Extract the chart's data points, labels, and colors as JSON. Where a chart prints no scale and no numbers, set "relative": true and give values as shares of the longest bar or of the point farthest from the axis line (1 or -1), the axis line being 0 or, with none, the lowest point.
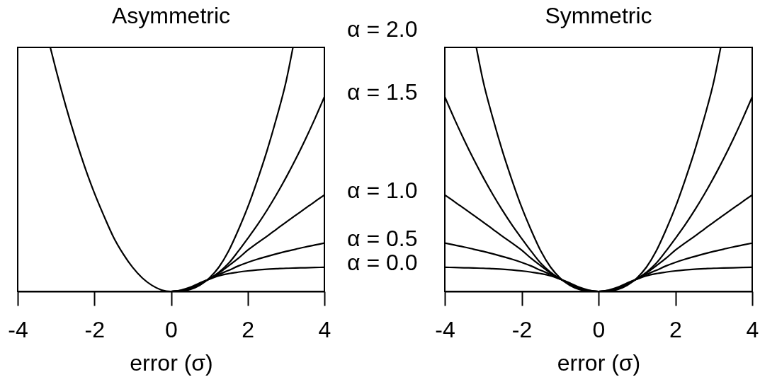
{
  "chart_data": [
    {
      "type": "line",
      "title": "Asymmetric",
      "xlabel": "error (σ)",
      "xlim": [
        -4,
        4
      ],
      "xticks": [
        -4,
        -2,
        0,
        2,
        4
      ],
      "relative": true,
      "series": [
        {
          "name": "α = 1.5",
          "color": "#000000",
          "x": [
            0,
            0.25,
            0.5,
            0.75,
            1,
            1.25,
            1.5,
            1.75,
            2,
            2.25,
            2.5,
            2.75,
            3,
            3.25,
            3.5,
            3.75,
            4
          ],
          "values": [
            0,
            0.002,
            0.01,
            0.028,
            0.052,
            0.079,
            0.115,
            0.164,
            0.217,
            0.272,
            0.332,
            0.397,
            0.467,
            0.542,
            0.622,
            0.707,
            0.797
          ]
        },
        {
          "name": "α = 1.0",
          "color": "#000000",
          "x": [
            0,
            0.25,
            0.5,
            0.75,
            1,
            1.25,
            1.5,
            1.75,
            2,
            2.25,
            2.5,
            2.75,
            3,
            3.25,
            3.5,
            3.75,
            4
          ],
          "values": [
            0,
            0.003,
            0.012,
            0.031,
            0.051,
            0.076,
            0.105,
            0.135,
            0.169,
            0.198,
            0.226,
            0.255,
            0.284,
            0.312,
            0.34,
            0.368,
            0.395
          ]
        },
        {
          "name": "α = 0.5",
          "color": "#000000",
          "x": [
            0,
            0.25,
            0.5,
            0.75,
            1,
            1.25,
            1.5,
            1.75,
            2,
            2.25,
            2.5,
            2.75,
            3,
            3.25,
            3.5,
            3.75,
            4
          ],
          "values": [
            0,
            0.004,
            0.014,
            0.033,
            0.051,
            0.07,
            0.086,
            0.104,
            0.119,
            0.132,
            0.143,
            0.154,
            0.164,
            0.173,
            0.182,
            0.19,
            0.198
          ]
        },
        {
          "name": "α = 0.0",
          "color": "#000000",
          "x": [
            0,
            0.25,
            0.5,
            0.75,
            1,
            1.25,
            1.5,
            1.75,
            2,
            2.25,
            2.5,
            2.75,
            3,
            3.25,
            3.5,
            3.75,
            4
          ],
          "values": [
            0,
            0.005,
            0.017,
            0.035,
            0.05,
            0.064,
            0.073,
            0.079,
            0.084,
            0.088,
            0.091,
            0.093,
            0.095,
            0.096,
            0.097,
            0.098,
            0.099
          ]
        },
        {
          "name": "α = 2.0",
          "color": "#000000",
          "x": [
            -3.15,
            -3,
            -2.75,
            -2.5,
            -2.25,
            -2,
            -1.75,
            -1.5,
            -1.25,
            -1,
            -0.75,
            -0.5,
            -0.25,
            0,
            0.25,
            0.5,
            0.75,
            1,
            1.25,
            1.5,
            1.75,
            2,
            2.25,
            2.5,
            2.75,
            3,
            3.18
          ],
          "values": [
            1,
            0.907,
            0.762,
            0.63,
            0.51,
            0.403,
            0.309,
            0.222,
            0.154,
            0.098,
            0.055,
            0.025,
            0.006,
            0,
            0.002,
            0.008,
            0.025,
            0.055,
            0.1,
            0.165,
            0.25,
            0.345,
            0.455,
            0.575,
            0.71,
            0.86,
            1
          ]
        }
      ]
    },
    {
      "type": "line",
      "title": "Symmetric",
      "xlabel": "error (σ)",
      "xlim": [
        -4,
        4
      ],
      "xticks": [
        -4,
        -2,
        0,
        2,
        4
      ],
      "relative": true,
      "series": [
        {
          "color": "#000000",
          "x": [
            -4,
            -3.75,
            -3.5,
            -3.25,
            -3,
            -2.75,
            -2.5,
            -2.25,
            -2,
            -1.75,
            -1.5,
            -1.25,
            -1,
            -0.75,
            -0.5,
            -0.25,
            0,
            0.25,
            0.5,
            0.75,
            1,
            1.25,
            1.5,
            1.75,
            2,
            2.25,
            2.5,
            2.75,
            3,
            3.25,
            3.5,
            3.75,
            4
          ],
          "values": [
            0.797,
            0.707,
            0.622,
            0.542,
            0.467,
            0.397,
            0.332,
            0.272,
            0.217,
            0.164,
            0.115,
            0.079,
            0.052,
            0.028,
            0.01,
            0.002,
            0,
            0.002,
            0.01,
            0.028,
            0.052,
            0.079,
            0.115,
            0.164,
            0.217,
            0.272,
            0.332,
            0.397,
            0.467,
            0.542,
            0.622,
            0.707,
            0.797
          ]
        },
        {
          "color": "#000000",
          "x": [
            -4,
            -3.75,
            -3.5,
            -3.25,
            -3,
            -2.75,
            -2.5,
            -2.25,
            -2,
            -1.75,
            -1.5,
            -1.25,
            -1,
            -0.75,
            -0.5,
            -0.25,
            0,
            0.25,
            0.5,
            0.75,
            1,
            1.25,
            1.5,
            1.75,
            2,
            2.25,
            2.5,
            2.75,
            3,
            3.25,
            3.5,
            3.75,
            4
          ],
          "values": [
            0.395,
            0.368,
            0.34,
            0.312,
            0.284,
            0.255,
            0.226,
            0.198,
            0.169,
            0.135,
            0.105,
            0.076,
            0.051,
            0.031,
            0.012,
            0.003,
            0,
            0.003,
            0.012,
            0.031,
            0.051,
            0.076,
            0.105,
            0.135,
            0.169,
            0.198,
            0.226,
            0.255,
            0.284,
            0.312,
            0.34,
            0.368,
            0.395
          ]
        },
        {
          "color": "#000000",
          "x": [
            -4,
            -3.75,
            -3.5,
            -3.25,
            -3,
            -2.75,
            -2.5,
            -2.25,
            -2,
            -1.75,
            -1.5,
            -1.25,
            -1,
            -0.75,
            -0.5,
            -0.25,
            0,
            0.25,
            0.5,
            0.75,
            1,
            1.25,
            1.5,
            1.75,
            2,
            2.25,
            2.5,
            2.75,
            3,
            3.25,
            3.5,
            3.75,
            4
          ],
          "values": [
            0.198,
            0.19,
            0.182,
            0.173,
            0.164,
            0.154,
            0.143,
            0.132,
            0.119,
            0.104,
            0.086,
            0.07,
            0.051,
            0.033,
            0.014,
            0.004,
            0,
            0.004,
            0.014,
            0.033,
            0.051,
            0.07,
            0.086,
            0.104,
            0.119,
            0.132,
            0.143,
            0.154,
            0.164,
            0.173,
            0.182,
            0.19,
            0.198
          ]
        },
        {
          "color": "#000000",
          "x": [
            -4,
            -3.75,
            -3.5,
            -3.25,
            -3,
            -2.75,
            -2.5,
            -2.25,
            -2,
            -1.75,
            -1.5,
            -1.25,
            -1,
            -0.75,
            -0.5,
            -0.25,
            0,
            0.25,
            0.5,
            0.75,
            1,
            1.25,
            1.5,
            1.75,
            2,
            2.25,
            2.5,
            2.75,
            3,
            3.25,
            3.5,
            3.75,
            4
          ],
          "values": [
            0.099,
            0.098,
            0.097,
            0.096,
            0.095,
            0.093,
            0.091,
            0.088,
            0.084,
            0.079,
            0.073,
            0.064,
            0.05,
            0.035,
            0.017,
            0.005,
            0,
            0.005,
            0.017,
            0.035,
            0.05,
            0.064,
            0.073,
            0.079,
            0.084,
            0.088,
            0.091,
            0.093,
            0.095,
            0.096,
            0.097,
            0.098,
            0.099
          ]
        },
        {
          "color": "#000000",
          "x": [
            -3.18,
            -3,
            -2.75,
            -2.5,
            -2.25,
            -2,
            -1.75,
            -1.5,
            -1.25,
            -1,
            -0.75,
            -0.5,
            -0.25,
            0,
            0.25,
            0.5,
            0.75,
            1,
            1.25,
            1.5,
            1.75,
            2,
            2.25,
            2.5,
            2.75,
            3,
            3.18
          ],
          "values": [
            1,
            0.86,
            0.71,
            0.575,
            0.455,
            0.345,
            0.25,
            0.165,
            0.1,
            0.055,
            0.025,
            0.008,
            0.002,
            0,
            0.002,
            0.008,
            0.025,
            0.055,
            0.1,
            0.165,
            0.25,
            0.345,
            0.455,
            0.575,
            0.71,
            0.86,
            1
          ]
        }
      ]
    }
  ]
}
